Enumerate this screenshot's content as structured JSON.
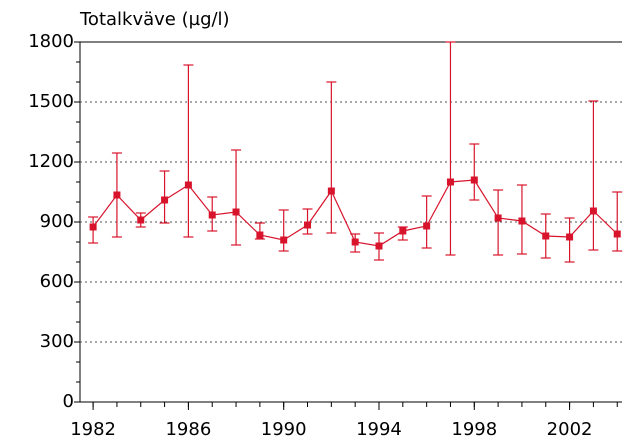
{
  "chart_data": {
    "type": "line",
    "title": "Totalkväve (µg/l)",
    "x": [
      1982,
      1983,
      1984,
      1985,
      1986,
      1987,
      1988,
      1989,
      1990,
      1991,
      1992,
      1993,
      1994,
      1995,
      1996,
      1997,
      1998,
      1999,
      2000,
      2001,
      2002,
      2003,
      2004
    ],
    "series": [
      {
        "color": "#d8142c",
        "values": [
          875,
          1035,
          910,
          1010,
          1085,
          935,
          950,
          835,
          810,
          885,
          1055,
          800,
          780,
          855,
          880,
          1100,
          1110,
          920,
          905,
          830,
          825,
          955,
          840
        ],
        "low": [
          795,
          825,
          875,
          895,
          825,
          855,
          785,
          815,
          755,
          840,
          845,
          750,
          710,
          810,
          770,
          735,
          1010,
          735,
          740,
          720,
          700,
          760,
          755
        ],
        "high": [
          925,
          1245,
          945,
          1155,
          1685,
          1025,
          1260,
          895,
          960,
          965,
          1600,
          840,
          845,
          875,
          1030,
          1800,
          1290,
          1060,
          1085,
          940,
          920,
          1505,
          1050
        ]
      }
    ],
    "xlim": [
      1981.45,
      2004.2
    ],
    "xticks": [
      1982,
      1986,
      1990,
      1994,
      1998,
      2002
    ],
    "ylim": [
      0,
      1800
    ],
    "yticks": [
      0,
      300,
      600,
      900,
      1200,
      1500,
      1800
    ],
    "grid": true
  }
}
